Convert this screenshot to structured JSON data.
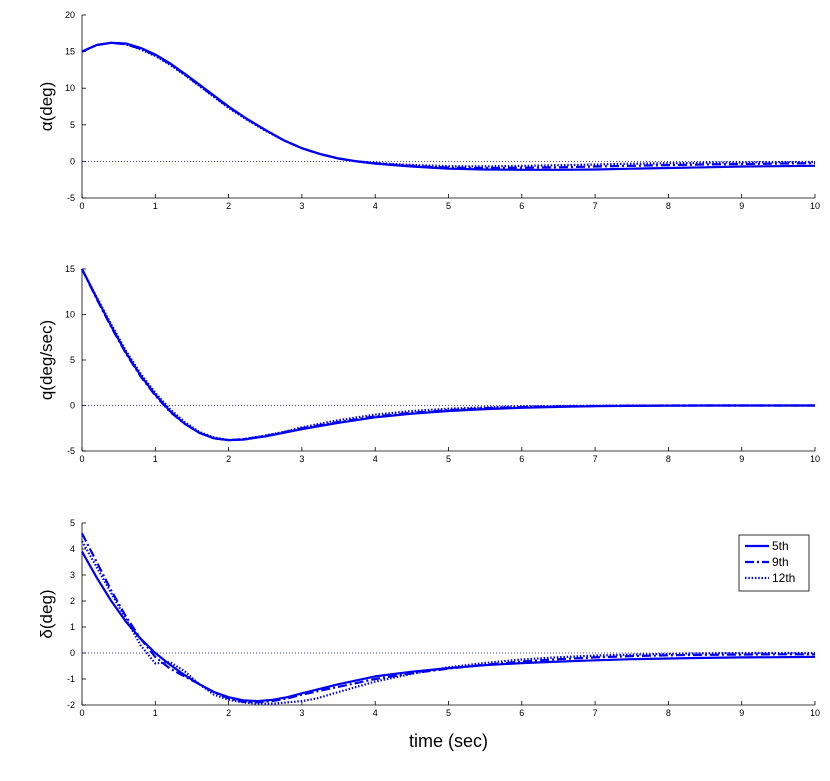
{
  "chart_data": [
    {
      "type": "line",
      "ylabel": "α(deg)",
      "xlabel": "",
      "xlim": [
        0,
        10
      ],
      "ylim": [
        -5,
        20
      ],
      "xticks": [
        0,
        1,
        2,
        3,
        4,
        5,
        6,
        7,
        8,
        9,
        10
      ],
      "yticks": [
        -5,
        0,
        5,
        10,
        15,
        20
      ],
      "reference_line": 0,
      "series": [
        {
          "style": "solid",
          "x": [
            0,
            0.2,
            0.4,
            0.6,
            0.8,
            1,
            1.2,
            1.4,
            1.6,
            1.8,
            2,
            2.25,
            2.5,
            2.75,
            3,
            3.25,
            3.5,
            3.75,
            4,
            4.25,
            4.5,
            4.75,
            5,
            5.5,
            6,
            6.5,
            7,
            7.5,
            8,
            8.5,
            9,
            9.5,
            10
          ],
          "y": [
            15,
            15.9,
            16.2,
            16.1,
            15.5,
            14.6,
            13.4,
            12.0,
            10.5,
            9.0,
            7.5,
            5.8,
            4.3,
            2.9,
            1.8,
            1.0,
            0.4,
            0,
            -0.3,
            -0.5,
            -0.7,
            -0.85,
            -1.0,
            -1.1,
            -1.15,
            -1.15,
            -1.1,
            -1.0,
            -0.9,
            -0.8,
            -0.7,
            -0.65,
            -0.6
          ]
        },
        {
          "style": "dashdot",
          "x": [
            0,
            0.2,
            0.4,
            0.6,
            0.8,
            1,
            1.2,
            1.4,
            1.6,
            1.8,
            2,
            2.25,
            2.5,
            2.75,
            3,
            3.25,
            3.5,
            3.75,
            4,
            4.25,
            4.5,
            4.75,
            5,
            5.5,
            6,
            6.5,
            7,
            7.5,
            8,
            8.5,
            9,
            9.5,
            10
          ],
          "y": [
            15,
            15.9,
            16.2,
            16.0,
            15.4,
            14.5,
            13.3,
            11.9,
            10.4,
            8.9,
            7.4,
            5.8,
            4.3,
            2.9,
            1.8,
            1.0,
            0.4,
            0,
            -0.25,
            -0.45,
            -0.6,
            -0.75,
            -0.85,
            -0.9,
            -0.88,
            -0.8,
            -0.7,
            -0.6,
            -0.5,
            -0.42,
            -0.35,
            -0.3,
            -0.25
          ]
        },
        {
          "style": "dotted",
          "x": [
            0,
            0.2,
            0.4,
            0.6,
            0.8,
            1,
            1.2,
            1.4,
            1.6,
            1.8,
            2,
            2.25,
            2.5,
            2.75,
            3,
            3.25,
            3.5,
            3.75,
            4,
            4.25,
            4.5,
            4.75,
            5,
            5.5,
            6,
            6.5,
            7,
            7.5,
            8,
            8.5,
            9,
            9.5,
            10
          ],
          "y": [
            15,
            15.9,
            16.2,
            16.0,
            15.3,
            14.4,
            13.2,
            11.8,
            10.3,
            8.8,
            7.3,
            5.7,
            4.2,
            2.9,
            1.8,
            1.0,
            0.4,
            0,
            -0.2,
            -0.35,
            -0.48,
            -0.58,
            -0.65,
            -0.68,
            -0.62,
            -0.52,
            -0.42,
            -0.32,
            -0.25,
            -0.18,
            -0.13,
            -0.1,
            -0.08
          ]
        }
      ]
    },
    {
      "type": "line",
      "ylabel": "q(deg/sec)",
      "xlabel": "",
      "xlim": [
        0,
        10
      ],
      "ylim": [
        -5,
        15
      ],
      "xticks": [
        0,
        1,
        2,
        3,
        4,
        5,
        6,
        7,
        8,
        9,
        10
      ],
      "yticks": [
        -5,
        0,
        5,
        10,
        15
      ],
      "reference_line": 0,
      "series": [
        {
          "style": "solid",
          "x": [
            0,
            0.2,
            0.4,
            0.6,
            0.8,
            1,
            1.2,
            1.4,
            1.6,
            1.8,
            2,
            2.2,
            2.5,
            2.75,
            3,
            3.5,
            4,
            4.5,
            5,
            5.5,
            6,
            6.5,
            7,
            7.5,
            8,
            8.5,
            9,
            9.5,
            10
          ],
          "y": [
            15,
            11.8,
            8.7,
            5.8,
            3.3,
            1.2,
            -0.6,
            -2.0,
            -3.0,
            -3.6,
            -3.8,
            -3.75,
            -3.4,
            -3.0,
            -2.6,
            -1.9,
            -1.3,
            -0.9,
            -0.6,
            -0.4,
            -0.25,
            -0.15,
            -0.08,
            -0.04,
            -0.02,
            0,
            0,
            0,
            0
          ]
        },
        {
          "style": "dashdot",
          "x": [
            0,
            0.2,
            0.4,
            0.6,
            0.8,
            1,
            1.2,
            1.4,
            1.6,
            1.8,
            2,
            2.2,
            2.5,
            2.75,
            3,
            3.5,
            4,
            4.5,
            5,
            5.5,
            6,
            6.5,
            7,
            7.5,
            8,
            8.5,
            9,
            9.5,
            10
          ],
          "y": [
            15,
            11.7,
            8.6,
            5.7,
            3.2,
            1.1,
            -0.7,
            -2.0,
            -3.0,
            -3.6,
            -3.8,
            -3.7,
            -3.35,
            -2.95,
            -2.5,
            -1.8,
            -1.2,
            -0.8,
            -0.5,
            -0.3,
            -0.18,
            -0.1,
            -0.05,
            -0.02,
            0,
            0,
            0,
            0,
            0
          ]
        },
        {
          "style": "dotted",
          "x": [
            0,
            0.2,
            0.4,
            0.6,
            0.8,
            1,
            1.2,
            1.4,
            1.6,
            1.8,
            2,
            2.2,
            2.5,
            2.75,
            3,
            3.5,
            4,
            4.5,
            5,
            5.5,
            6,
            6.5,
            7,
            7.5,
            8,
            8.5,
            9,
            9.5,
            10
          ],
          "y": [
            15,
            11.9,
            8.9,
            6.0,
            3.5,
            1.4,
            -0.4,
            -1.8,
            -2.9,
            -3.5,
            -3.8,
            -3.7,
            -3.3,
            -2.9,
            -2.4,
            -1.6,
            -1.0,
            -0.6,
            -0.35,
            -0.2,
            -0.1,
            -0.05,
            -0.02,
            0,
            0,
            0,
            0,
            0,
            0
          ]
        }
      ]
    },
    {
      "type": "line",
      "ylabel": "δ(deg)",
      "xlabel": "time (sec)",
      "xlim": [
        0,
        10
      ],
      "ylim": [
        -2,
        5
      ],
      "xticks": [
        0,
        1,
        2,
        3,
        4,
        5,
        6,
        7,
        8,
        9,
        10
      ],
      "yticks": [
        -2,
        -1,
        0,
        1,
        2,
        3,
        4,
        5
      ],
      "reference_line": 0,
      "legend": {
        "position": "top-right",
        "entries": [
          "5th",
          "9th",
          "12th"
        ]
      },
      "series": [
        {
          "name": "5th",
          "style": "solid",
          "x": [
            0,
            0.2,
            0.4,
            0.6,
            0.8,
            1,
            1.2,
            1.4,
            1.6,
            1.8,
            2,
            2.2,
            2.4,
            2.6,
            2.8,
            3,
            3.5,
            4,
            4.5,
            5,
            5.5,
            6,
            6.5,
            7,
            7.5,
            8,
            8.5,
            9,
            9.5,
            10
          ],
          "y": [
            3.9,
            2.9,
            2.0,
            1.2,
            0.55,
            0,
            -0.45,
            -0.85,
            -1.2,
            -1.5,
            -1.7,
            -1.82,
            -1.85,
            -1.8,
            -1.7,
            -1.55,
            -1.2,
            -0.9,
            -0.72,
            -0.58,
            -0.47,
            -0.39,
            -0.33,
            -0.28,
            -0.24,
            -0.21,
            -0.19,
            -0.17,
            -0.16,
            -0.15
          ]
        },
        {
          "name": "9th",
          "style": "dashdot",
          "x": [
            0,
            0.2,
            0.4,
            0.6,
            0.8,
            1,
            1.2,
            1.4,
            1.6,
            1.8,
            2,
            2.2,
            2.4,
            2.6,
            2.8,
            3,
            3.5,
            4,
            4.5,
            5,
            5.5,
            6,
            6.5,
            7,
            7.5,
            8,
            8.5,
            9,
            9.5,
            10
          ],
          "y": [
            4.6,
            3.5,
            2.4,
            1.4,
            0.55,
            -0.15,
            -0.6,
            -0.9,
            -1.2,
            -1.5,
            -1.75,
            -1.88,
            -1.9,
            -1.85,
            -1.75,
            -1.6,
            -1.3,
            -1.0,
            -0.78,
            -0.6,
            -0.45,
            -0.33,
            -0.24,
            -0.17,
            -0.12,
            -0.09,
            -0.07,
            -0.06,
            -0.05,
            -0.05
          ]
        },
        {
          "name": "12th",
          "style": "dotted",
          "x": [
            0,
            0.2,
            0.4,
            0.6,
            0.8,
            1,
            1.2,
            1.4,
            1.6,
            1.8,
            2,
            2.2,
            2.4,
            2.6,
            2.8,
            3,
            3.2,
            3.5,
            4,
            4.5,
            5,
            5.5,
            6,
            6.5,
            7,
            7.5,
            8,
            8.5,
            9,
            9.5,
            10
          ],
          "y": [
            4.3,
            3.3,
            2.3,
            1.3,
            0.3,
            -0.4,
            -0.35,
            -0.7,
            -1.2,
            -1.6,
            -1.8,
            -1.9,
            -1.95,
            -1.95,
            -1.9,
            -1.85,
            -1.75,
            -1.5,
            -1.1,
            -0.8,
            -0.55,
            -0.38,
            -0.25,
            -0.16,
            -0.1,
            -0.06,
            -0.03,
            -0.01,
            0,
            0,
            0
          ]
        }
      ]
    }
  ],
  "colors": {
    "line": "#0000ee",
    "reference": "#0000ee",
    "axis": "#000000"
  }
}
